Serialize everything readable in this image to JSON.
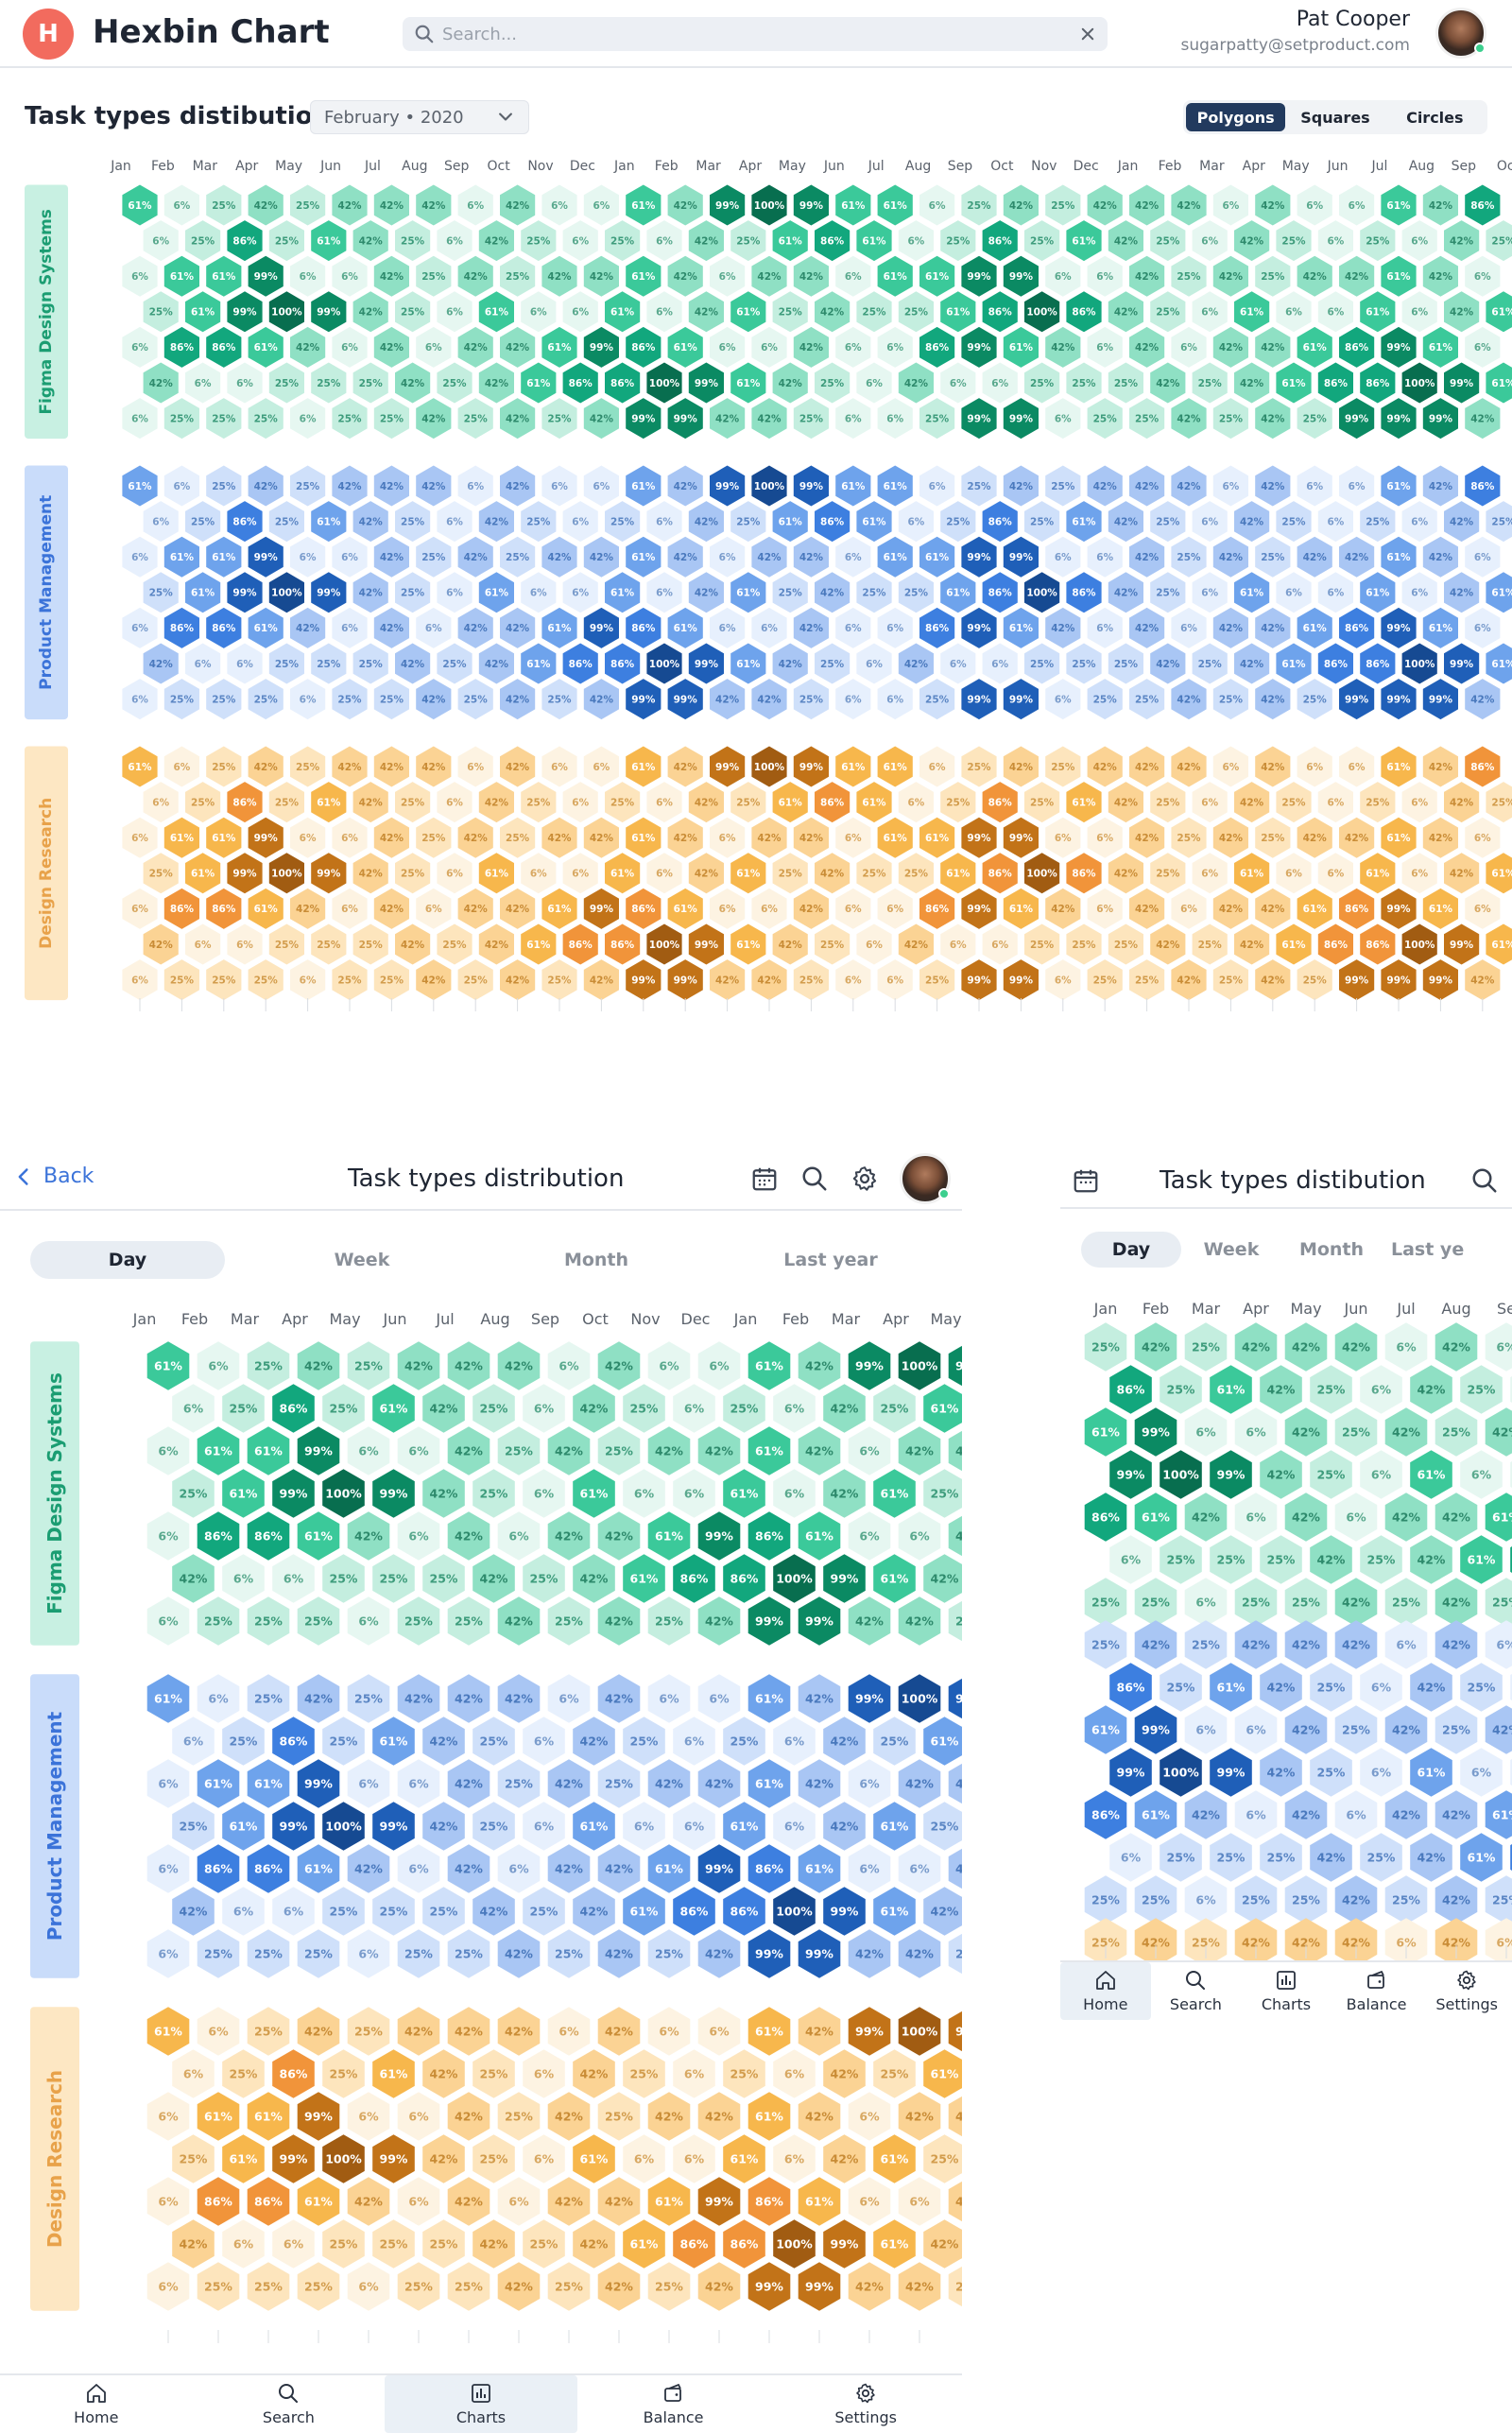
{
  "app": {
    "title": "Hexbin Chart",
    "logo_letter": "H"
  },
  "search": {
    "placeholder": "Search..."
  },
  "user": {
    "name": "Pat Cooper",
    "email": "sugarpatty@setproduct.com"
  },
  "desktop": {
    "section_title": "Task types distibution",
    "period": "February • 2020",
    "shape_options": [
      "Polygons",
      "Squares",
      "Circles"
    ],
    "shape_selected": "Polygons"
  },
  "mobile": {
    "back_label": "Back",
    "title": "Task types distribution",
    "tabs": [
      "Day",
      "Week",
      "Month",
      "Last year"
    ],
    "active_tab": "Day",
    "nav": [
      "Home",
      "Search",
      "Charts",
      "Balance",
      "Settings"
    ],
    "active_nav": "Charts"
  },
  "mobile2": {
    "title": "Task types distibution",
    "tabs": [
      "Day",
      "Week",
      "Month",
      "Last ye"
    ],
    "active_tab": "Day",
    "nav": [
      "Home",
      "Search",
      "Charts",
      "Balance",
      "Settings"
    ],
    "active_nav": "Home"
  },
  "colors": {
    "green": "#14a37c",
    "blue": "#3d7fe0",
    "orange": "#f2a33a",
    "accent": "#223a5e"
  },
  "chart_data": {
    "type": "heatmap",
    "title": "Task types distibution",
    "months_desktop": [
      "Jan",
      "Feb",
      "Mar",
      "Apr",
      "May",
      "Jun",
      "Jul",
      "Aug",
      "Sep",
      "Oct",
      "Nov",
      "Dec",
      "Jan",
      "Feb",
      "Mar",
      "Apr",
      "May",
      "Jun",
      "Jul",
      "Aug",
      "Sep",
      "Oct",
      "Nov",
      "Dec",
      "Jan",
      "Feb",
      "Mar",
      "Apr",
      "May",
      "Jun",
      "Jul",
      "Aug",
      "Sep",
      "Oc"
    ],
    "months_mobile": [
      "Jan",
      "Feb",
      "Mar",
      "Apr",
      "May",
      "Jun",
      "Jul",
      "Aug",
      "Sep",
      "Oct",
      "Nov",
      "Dec",
      "Jan",
      "Feb",
      "Mar",
      "Apr",
      "May"
    ],
    "months_mobile2": [
      "Jan",
      "Feb",
      "Mar",
      "Apr",
      "May",
      "Jun",
      "Jul",
      "Aug",
      "Se"
    ],
    "categories": [
      "Figma Design Systems",
      "Product Management",
      "Design Research"
    ],
    "value_levels": [
      "6%",
      "25%",
      "42%",
      "61%",
      "86%",
      "99%",
      "100%"
    ],
    "rows": [
      [
        "61%",
        "6%",
        "25%",
        "42%",
        "25%",
        "42%",
        "42%",
        "42%",
        "6%",
        "42%",
        "6%",
        "6%",
        "61%",
        "42%",
        "99%",
        "100%",
        "99%",
        "61%",
        "61%",
        "6%",
        "25%",
        "42%",
        "25%",
        "42%",
        "42%",
        "42%",
        "6%",
        "42%",
        "6%",
        "6%",
        "61%",
        "42%",
        "86%"
      ],
      [
        "6%",
        "25%",
        "86%",
        "25%",
        "61%",
        "42%",
        "25%",
        "6%",
        "42%",
        "25%",
        "6%",
        "25%",
        "6%",
        "42%",
        "25%",
        "61%",
        "86%",
        "61%",
        "6%",
        "25%",
        "86%",
        "25%",
        "61%",
        "42%",
        "25%",
        "6%",
        "42%",
        "25%",
        "6%",
        "25%",
        "6%",
        "42%",
        "25%"
      ],
      [
        "6%",
        "61%",
        "61%",
        "99%",
        "6%",
        "6%",
        "42%",
        "25%",
        "42%",
        "25%",
        "42%",
        "42%",
        "61%",
        "42%",
        "6%",
        "42%",
        "42%",
        "6%",
        "61%",
        "61%",
        "99%",
        "99%",
        "6%",
        "6%",
        "42%",
        "25%",
        "42%",
        "25%",
        "42%",
        "42%",
        "61%",
        "42%",
        "6%"
      ],
      [
        "25%",
        "61%",
        "99%",
        "100%",
        "99%",
        "42%",
        "25%",
        "6%",
        "61%",
        "6%",
        "6%",
        "61%",
        "6%",
        "42%",
        "61%",
        "25%",
        "42%",
        "25%",
        "25%",
        "61%",
        "86%",
        "100%",
        "86%",
        "42%",
        "25%",
        "6%",
        "61%",
        "6%",
        "6%",
        "61%",
        "6%",
        "42%",
        "61%"
      ],
      [
        "6%",
        "86%",
        "86%",
        "61%",
        "42%",
        "6%",
        "42%",
        "6%",
        "42%",
        "42%",
        "61%",
        "99%",
        "86%",
        "61%",
        "6%",
        "6%",
        "42%",
        "6%",
        "6%",
        "86%",
        "99%",
        "61%",
        "42%",
        "6%",
        "42%",
        "6%",
        "42%",
        "42%",
        "61%",
        "86%",
        "99%",
        "61%",
        "6%"
      ],
      [
        "42%",
        "6%",
        "6%",
        "25%",
        "25%",
        "25%",
        "42%",
        "25%",
        "42%",
        "61%",
        "86%",
        "86%",
        "100%",
        "99%",
        "61%",
        "42%",
        "25%",
        "6%",
        "42%",
        "6%",
        "6%",
        "25%",
        "25%",
        "25%",
        "42%",
        "25%",
        "42%",
        "61%",
        "86%",
        "86%",
        "100%",
        "99%",
        "61%"
      ],
      [
        "6%",
        "25%",
        "25%",
        "25%",
        "6%",
        "25%",
        "25%",
        "42%",
        "25%",
        "42%",
        "25%",
        "42%",
        "99%",
        "99%",
        "42%",
        "42%",
        "25%",
        "6%",
        "6%",
        "25%",
        "99%",
        "99%",
        "6%",
        "25%",
        "25%",
        "42%",
        "25%",
        "42%",
        "25%",
        "99%",
        "99%",
        "99%",
        "42%"
      ]
    ]
  }
}
